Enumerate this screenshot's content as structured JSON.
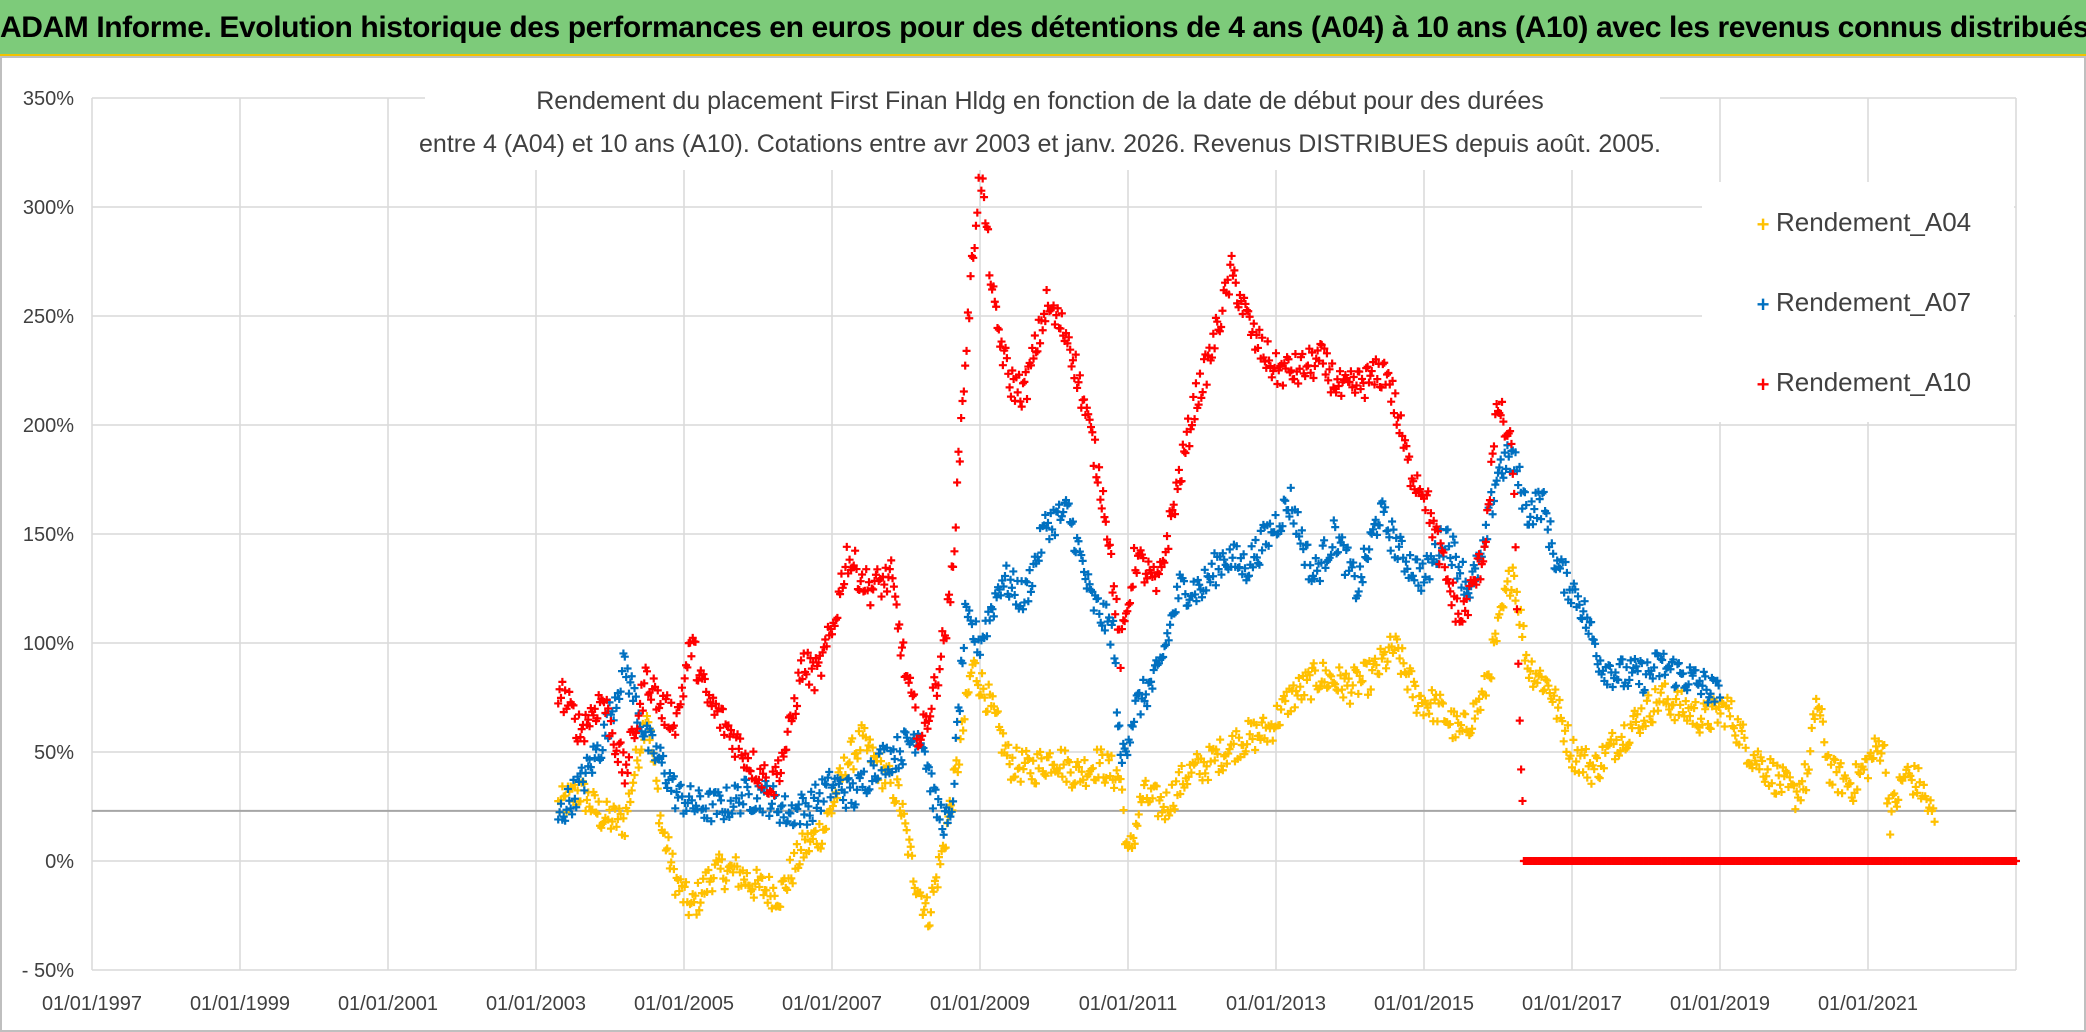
{
  "banner": {
    "title": "ADAM Informe. Evolution historique des performances en euros pour des détentions de 4 ans (A04) à 10 ans (A10) avec les revenus connus distribués"
  },
  "chart_data": {
    "type": "scatter",
    "title_line1": "Rendement du placement First Finan Hldg  en fonction de la date de début pour des durées",
    "title_line2": "entre 4 (A04) et 10 ans (A10). Cotations entre avr 2003 et janv. 2026. Revenus DISTRIBUES depuis août. 2005.",
    "xlim": [
      1997.0,
      2023.0
    ],
    "ylim": [
      -50,
      350
    ],
    "x_tick_values": [
      1997,
      1999,
      2001,
      2003,
      2005,
      2007,
      2009,
      2011,
      2013,
      2015,
      2017,
      2019,
      2021
    ],
    "x_tick_labels": [
      "01/01/1997",
      "01/01/1999",
      "01/01/2001",
      "01/01/2003",
      "01/01/2005",
      "01/01/2007",
      "01/01/2009",
      "01/01/2011",
      "01/01/2013",
      "01/01/2015",
      "01/01/2017",
      "01/01/2019",
      "01/01/2021"
    ],
    "y_tick_values": [
      -50,
      0,
      50,
      100,
      150,
      200,
      250,
      300,
      350
    ],
    "y_tick_labels": [
      "- 50%",
      "0%",
      "50%",
      "100%",
      "150%",
      "200%",
      "250%",
      "300%",
      "350%"
    ],
    "reference_line_y": 23,
    "grid": "vertical and horizontal",
    "legend_position": "top-right",
    "series": [
      {
        "name": "Rendement_A04",
        "color": "#ffc000",
        "x": [
          2003.3,
          2003.6,
          2003.9,
          2004.2,
          2004.5,
          2004.7,
          2004.9,
          2005.1,
          2005.4,
          2005.7,
          2006.0,
          2006.3,
          2006.6,
          2006.9,
          2007.2,
          2007.4,
          2007.7,
          2007.9,
          2008.1,
          2008.3,
          2008.5,
          2008.7,
          2008.9,
          2009.1,
          2009.4,
          2009.7,
          2010.0,
          2010.3,
          2010.6,
          2010.9,
          2011.0,
          2011.2,
          2011.5,
          2011.8,
          2012.1,
          2012.5,
          2012.9,
          2013.2,
          2013.6,
          2014.0,
          2014.3,
          2014.6,
          2014.9,
          2015.2,
          2015.5,
          2015.8,
          2016.0,
          2016.2,
          2016.4,
          2016.7,
          2017.0,
          2017.3,
          2017.6,
          2017.9,
          2018.2,
          2018.5,
          2018.8,
          2019.1,
          2019.4,
          2019.7,
          2020.0,
          2020.2,
          2020.3,
          2020.5,
          2020.8,
          2021.0,
          2021.2,
          2021.3,
          2021.5,
          2021.7,
          2021.9
        ],
        "y": [
          25,
          32,
          20,
          18,
          70,
          15,
          -10,
          -22,
          -5,
          -5,
          -12,
          -15,
          5,
          15,
          45,
          55,
          40,
          30,
          -5,
          -25,
          5,
          45,
          90,
          75,
          45,
          42,
          48,
          40,
          45,
          38,
          0,
          30,
          25,
          40,
          45,
          55,
          60,
          75,
          85,
          80,
          85,
          98,
          75,
          70,
          58,
          75,
          105,
          135,
          90,
          80,
          50,
          42,
          55,
          65,
          75,
          70,
          65,
          70,
          50,
          40,
          30,
          40,
          75,
          40,
          35,
          45,
          55,
          20,
          40,
          35,
          18
        ]
      },
      {
        "name": "Rendement_A07",
        "color": "#0070c0",
        "x": [
          2003.3,
          2003.6,
          2003.9,
          2004.2,
          2004.5,
          2004.7,
          2004.9,
          2005.2,
          2005.5,
          2005.8,
          2006.1,
          2006.4,
          2006.7,
          2007.0,
          2007.3,
          2007.6,
          2007.9,
          2008.2,
          2008.4,
          2008.6,
          2008.8,
          2009.0,
          2009.3,
          2009.6,
          2009.9,
          2010.2,
          2010.5,
          2010.8,
          2010.9,
          2011.1,
          2011.4,
          2011.7,
          2012.0,
          2012.3,
          2012.6,
          2012.9,
          2013.2,
          2013.5,
          2013.8,
          2014.1,
          2014.4,
          2014.7,
          2015.0,
          2015.3,
          2015.6,
          2015.8,
          2016.0,
          2016.2,
          2016.4,
          2016.6,
          2016.8,
          2017.1,
          2017.4,
          2017.7,
          2018.0,
          2018.2,
          2018.5,
          2018.8,
          2019.0
        ],
        "y": [
          20,
          35,
          55,
          90,
          55,
          45,
          30,
          25,
          25,
          30,
          30,
          22,
          25,
          35,
          30,
          45,
          50,
          60,
          25,
          15,
          110,
          100,
          130,
          120,
          155,
          160,
          120,
          105,
          45,
          70,
          85,
          125,
          125,
          140,
          135,
          150,
          165,
          130,
          150,
          125,
          160,
          140,
          130,
          150,
          125,
          140,
          180,
          185,
          160,
          165,
          135,
          120,
          90,
          85,
          85,
          90,
          85,
          80,
          75
        ]
      },
      {
        "name": "Rendement_A10",
        "color": "#ff0000",
        "x": [
          2003.3,
          2003.6,
          2003.9,
          2004.2,
          2004.5,
          2004.7,
          2004.9,
          2005.1,
          2005.3,
          2005.6,
          2005.9,
          2006.2,
          2006.4,
          2006.6,
          2006.8,
          2007.0,
          2007.2,
          2007.5,
          2007.8,
          2008.0,
          2008.2,
          2008.4,
          2008.6,
          2008.8,
          2009.0,
          2009.2,
          2009.4,
          2009.6,
          2009.9,
          2010.2,
          2010.5,
          2010.7,
          2010.9,
          2011.1,
          2011.4,
          2011.6,
          2011.9,
          2012.1,
          2012.4,
          2012.7,
          2013.0,
          2013.3,
          2013.6,
          2013.9,
          2014.2,
          2014.5,
          2014.8,
          2015.0,
          2015.3,
          2015.5,
          2015.8,
          2016.0,
          2016.2,
          2016.35,
          2016.6,
          2017.0,
          2017.5,
          2018.0,
          2018.5,
          2019.0,
          2019.5,
          2020.0,
          2020.5,
          2021.0,
          2021.5,
          2022.0,
          2022.5,
          2023.0
        ],
        "y": [
          80,
          60,
          75,
          40,
          85,
          70,
          65,
          100,
          75,
          60,
          45,
          35,
          55,
          90,
          85,
          105,
          140,
          125,
          130,
          85,
          55,
          80,
          120,
          230,
          320,
          250,
          220,
          215,
          255,
          240,
          195,
          160,
          95,
          140,
          125,
          160,
          210,
          230,
          270,
          240,
          225,
          225,
          230,
          215,
          220,
          225,
          180,
          170,
          130,
          110,
          140,
          210,
          185,
          0,
          0,
          0,
          0,
          0,
          0,
          0,
          0,
          0,
          0,
          0,
          0,
          0,
          0,
          0
        ]
      }
    ]
  }
}
